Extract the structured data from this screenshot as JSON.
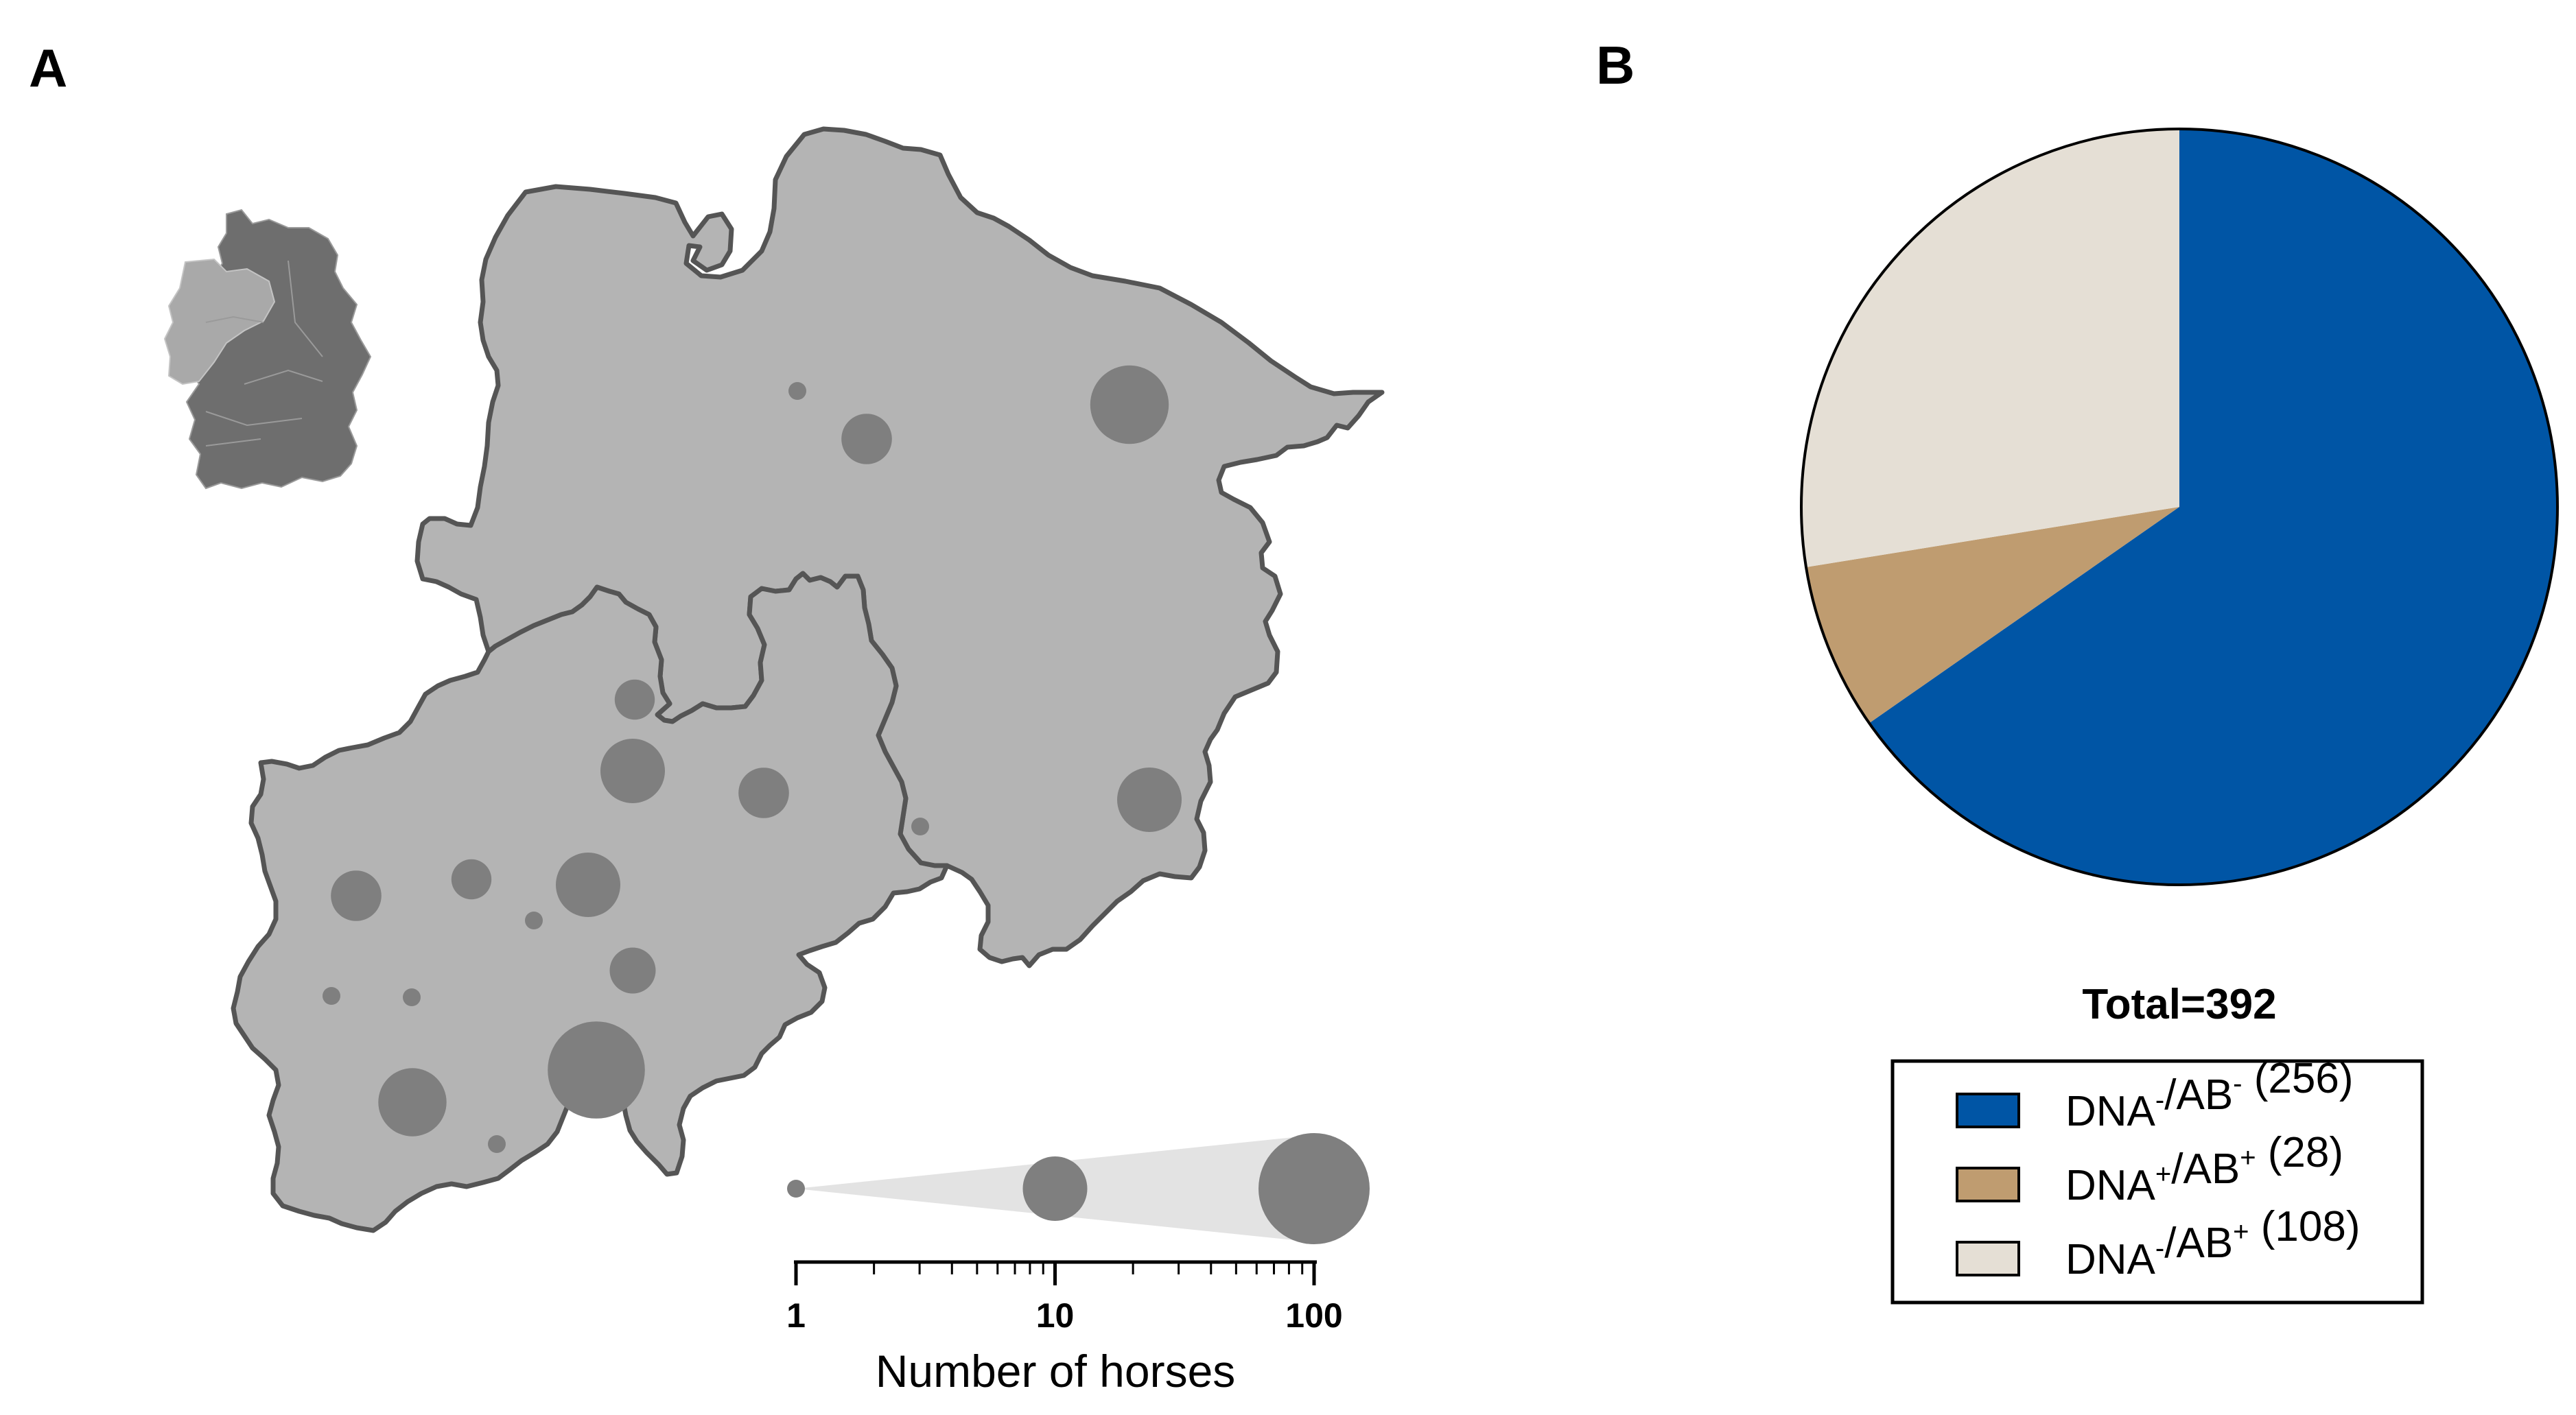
{
  "panel_a": {
    "letter": "A",
    "map": {
      "inset_map": "germany-outline",
      "region_fill": "#b4b4b4",
      "region_stroke": "#555555",
      "bubble_color": "#7f7f7f",
      "bubble_counts": [
        1,
        5,
        20,
        3,
        10,
        5,
        10,
        1,
        5,
        3,
        1,
        10,
        4,
        1,
        1,
        50,
        12,
        1
      ]
    },
    "chart_data": {
      "type": "scatter",
      "xlabel": "Number of horses",
      "x_scale": "log",
      "xlim": [
        1,
        100
      ],
      "x_ticks": [
        1,
        10,
        100
      ],
      "x_tick_labels": [
        "1",
        "10",
        "100"
      ],
      "size_legend": [
        1,
        10,
        100
      ]
    }
  },
  "panel_b": {
    "letter": "B",
    "chart_data": {
      "type": "pie",
      "title": "Total=392",
      "slices": [
        {
          "base": "DNA",
          "s1": "-",
          "mid": "/AB",
          "s2": "-",
          "count": "(256)",
          "value": 256,
          "color": "#0055a5"
        },
        {
          "base": "DNA",
          "s1": "+",
          "mid": "/AB",
          "s2": "+",
          "count": "(28)",
          "value": 28,
          "color": "#bf9c70"
        },
        {
          "base": "DNA",
          "s1": "-",
          "mid": "/AB",
          "s2": "+",
          "count": "(108)",
          "value": 108,
          "color": "#e5dfd5"
        }
      ]
    }
  }
}
